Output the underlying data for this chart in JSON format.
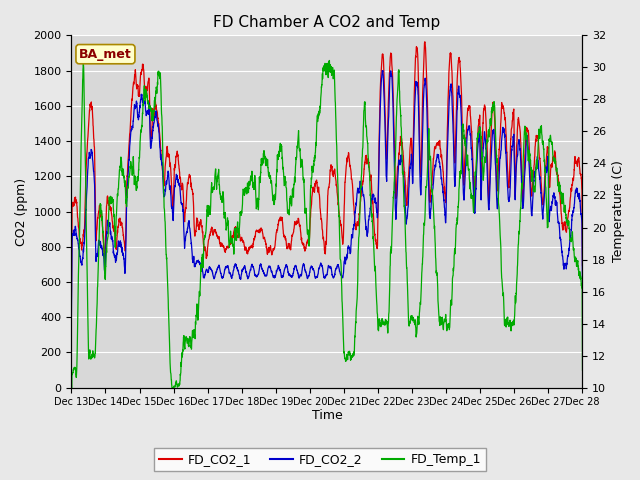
{
  "title": "FD Chamber A CO2 and Temp",
  "xlabel": "Time",
  "ylabel_left": "CO2 (ppm)",
  "ylabel_right": "Temperature (C)",
  "annotation": "BA_met",
  "x_tick_labels": [
    "Dec 13",
    "Dec 14",
    "Dec 15",
    "Dec 16",
    "Dec 17",
    "Dec 18",
    "Dec 19",
    "Dec 20",
    "Dec 21",
    "Dec 22",
    "Dec 23",
    "Dec 24",
    "Dec 25",
    "Dec 26",
    "Dec 27",
    "Dec 28"
  ],
  "ylim_left": [
    0,
    2000
  ],
  "ylim_right": [
    10,
    32
  ],
  "legend_labels": [
    "FD_CO2_1",
    "FD_CO2_2",
    "FD_Temp_1"
  ],
  "legend_colors": [
    "#dd0000",
    "#0000cc",
    "#00aa00"
  ],
  "background_color": "#e8e8e8",
  "plot_bg_color": "#d8d8d8",
  "grid_color": "#ffffff",
  "figwidth": 6.4,
  "figheight": 4.8,
  "dpi": 100
}
